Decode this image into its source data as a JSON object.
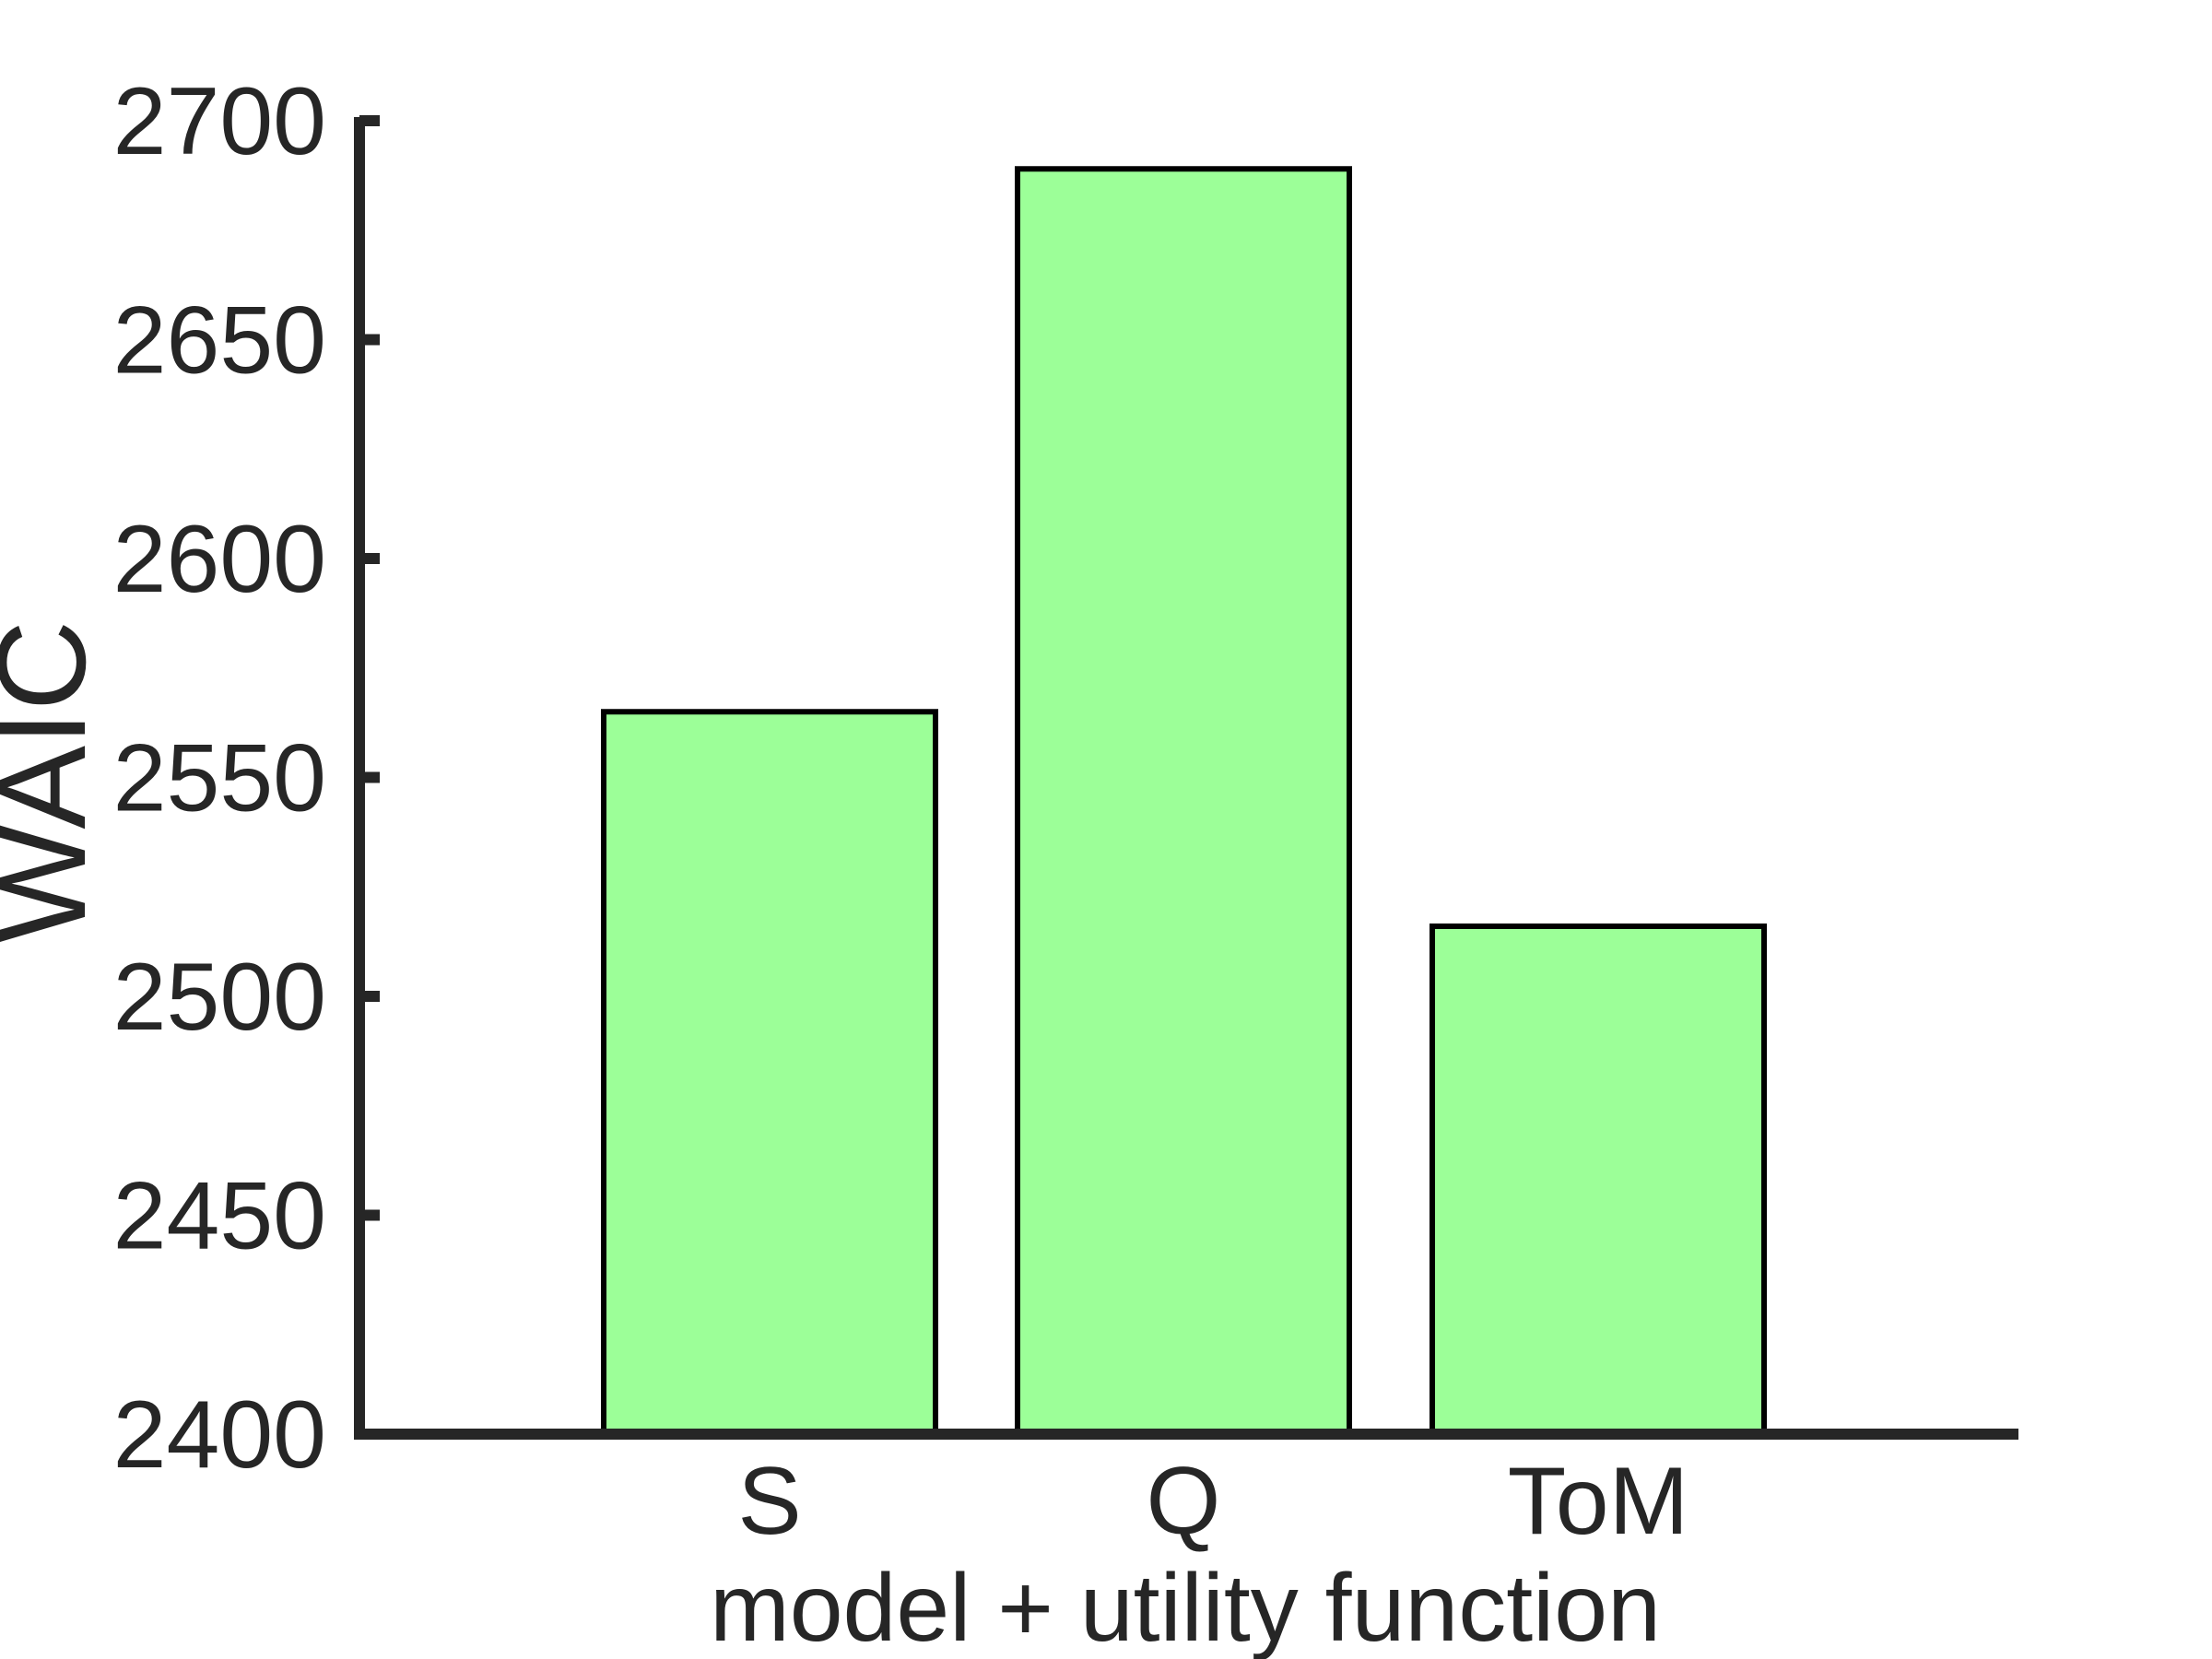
{
  "chart_data": {
    "type": "bar",
    "title": "",
    "xlabel": "model + utility function",
    "ylabel": "WAIC",
    "categories": [
      "S",
      "Q",
      "ToM"
    ],
    "values": [
      2565,
      2689,
      2516
    ],
    "ylim": [
      2400,
      2700
    ],
    "yticks": [
      2400,
      2450,
      2500,
      2550,
      2600,
      2650,
      2700
    ],
    "ytick_labels": [
      "2400",
      "2450",
      "2500",
      "2550",
      "2600",
      "2650",
      "2700"
    ],
    "grid": false,
    "bar_color": "#9cff98",
    "bar_edge_color": "#000000",
    "axis_color": "#262626"
  }
}
